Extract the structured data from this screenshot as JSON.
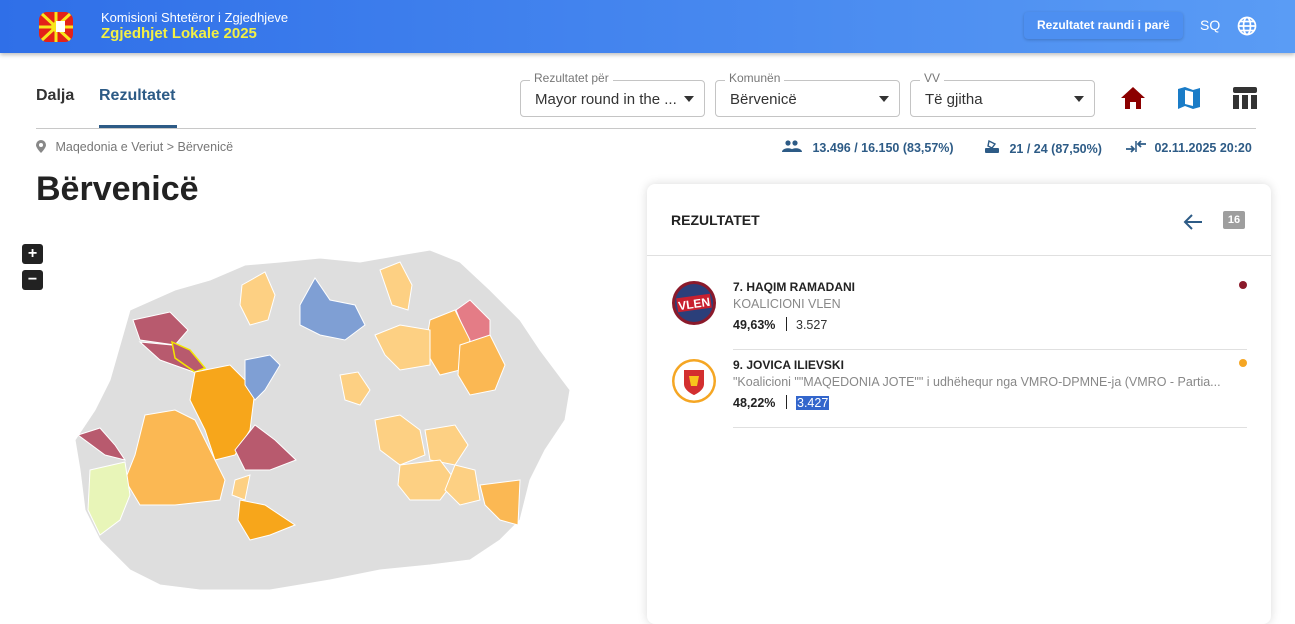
{
  "header": {
    "org": "Komisioni Shtetëror i Zgjedhjeve",
    "election": "Zgjedhjet Lokale 2025",
    "round_button": "Rezultatet raundi i parë",
    "language": "SQ"
  },
  "tabs": [
    {
      "label": "Dalja"
    },
    {
      "label": "Rezultatet",
      "active": true
    }
  ],
  "filters": [
    {
      "label": "Rezultatet për",
      "value": "Mayor round in the ..."
    },
    {
      "label": "Komunën",
      "value": "Bërvenicë"
    },
    {
      "label": "VV",
      "value": "Të gjitha"
    }
  ],
  "view_icons": [
    "home-icon",
    "map-icon",
    "table-icon"
  ],
  "breadcrumb": {
    "root": "Maqedonia e Veriut",
    "sep": ">",
    "current": "Bërvenicë"
  },
  "stats": {
    "turnout": "13.496 / 16.150 (83,57%)",
    "stations": "21 / 24 (87,50%)",
    "updated": "02.11.2025 20:20"
  },
  "page_title": "Bërvenicë",
  "map_controls": {
    "zoom_in": "+",
    "zoom_out": "−"
  },
  "results": {
    "title": "REZULTATET",
    "badge": "16",
    "candidates": [
      {
        "name": "7. HAQIM RAMADANI",
        "party": "KOALICIONI VLEN",
        "percent": "49,63%",
        "votes": "3.527",
        "color": "#8b1a2b",
        "logo_text": "VLEN"
      },
      {
        "name": "9. JOVICA ILIEVSKI",
        "party": "\"Koalicioni \"\"MAQEDONIA JOTE\"\" i udhëhequr nga VMRO-DPMNE-ja (VMRO - Partia...",
        "percent": "48,22%",
        "votes": "3.427",
        "color": "#f5a623"
      }
    ]
  },
  "colors": {
    "accent": "#2d5b86",
    "vlen": "#b85a6e",
    "vmro": "#fbb040",
    "vmro_light": "#fdd083",
    "sdsm_blue": "#7f9fd4",
    "other": "#e8f5b8",
    "none": "#dedede"
  }
}
